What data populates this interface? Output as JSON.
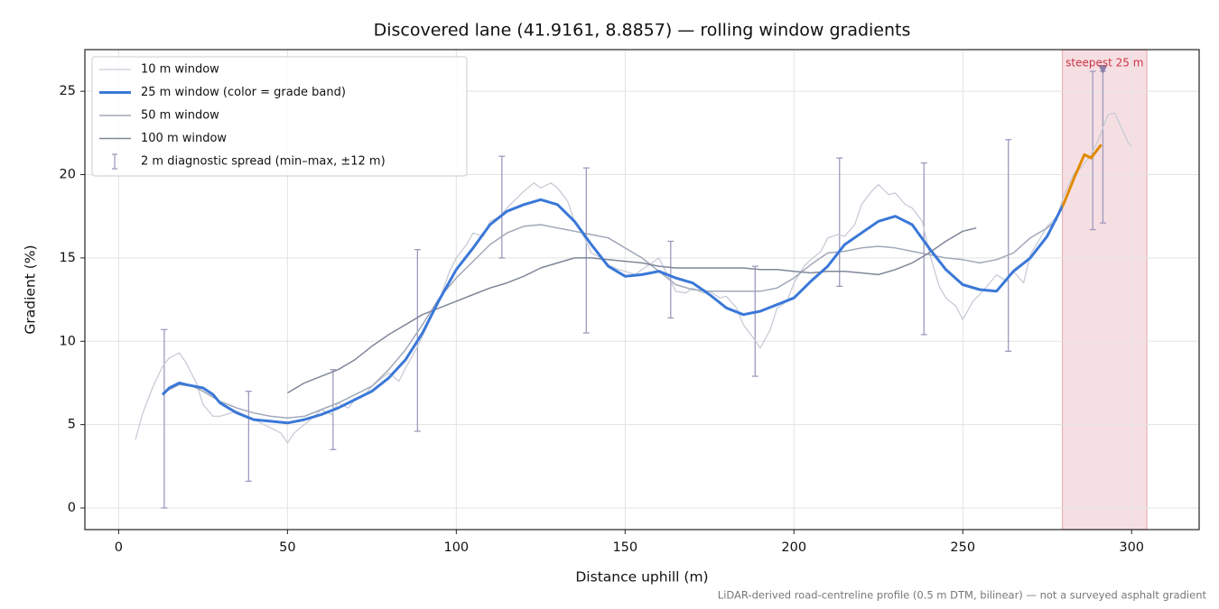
{
  "chart_data": {
    "type": "line",
    "title": "Discovered lane (41.9161, 8.8857) — rolling window gradients",
    "xlabel": "Distance uphill (m)",
    "ylabel": "Gradient (%)",
    "note": "LiDAR-derived road-centreline profile (0.5 m DTM, bilinear) — not a surveyed asphalt gradient",
    "xlim": [
      -10,
      320
    ],
    "ylim": [
      -1.3,
      27.5
    ],
    "xticks": [
      0,
      50,
      100,
      150,
      200,
      250,
      300
    ],
    "yticks": [
      0,
      5,
      10,
      15,
      20,
      25
    ],
    "grid": true,
    "legend": "upper left",
    "series": [
      {
        "name": "10 m window",
        "color": "#c8ccd6",
        "width": 1.3,
        "x": [
          5,
          7,
          10,
          13,
          15,
          18,
          20,
          23,
          25,
          28,
          30,
          35,
          40,
          45,
          48,
          50,
          52,
          55,
          58,
          60,
          63,
          65,
          68,
          70,
          73,
          75,
          78,
          80,
          83,
          85,
          88,
          90,
          95,
          98,
          100,
          103,
          105,
          108,
          110,
          113,
          115,
          118,
          120,
          123,
          125,
          128,
          130,
          133,
          135,
          138,
          140,
          143,
          145,
          148,
          150,
          153,
          155,
          158,
          160,
          163,
          165,
          168,
          170,
          173,
          175,
          178,
          180,
          183,
          185,
          188,
          190,
          193,
          195,
          198,
          200,
          203,
          205,
          208,
          210,
          213,
          215,
          218,
          220,
          223,
          225,
          228,
          230,
          233,
          235,
          238,
          240,
          243,
          245,
          248,
          250,
          253,
          255,
          258,
          260,
          263,
          265,
          268,
          270,
          273,
          275,
          278,
          280,
          283,
          285,
          288,
          290,
          293,
          295,
          297,
          299,
          300
        ],
        "values": [
          4.1,
          5.6,
          7.2,
          8.5,
          9.0,
          9.3,
          8.7,
          7.5,
          6.2,
          5.5,
          5.5,
          5.8,
          5.3,
          4.8,
          4.5,
          3.9,
          4.5,
          5.0,
          5.5,
          5.9,
          5.6,
          6.3,
          6.0,
          6.5,
          6.8,
          7.3,
          7.8,
          8.1,
          7.6,
          8.4,
          9.5,
          10.3,
          12.5,
          14.2,
          15.0,
          15.8,
          16.5,
          16.3,
          17.2,
          17.5,
          18.0,
          18.6,
          19.0,
          19.5,
          19.2,
          19.5,
          19.2,
          18.4,
          17.2,
          16.2,
          15.3,
          15.0,
          14.6,
          14.3,
          14.2,
          14.0,
          14.3,
          14.7,
          15.0,
          13.8,
          13.0,
          12.9,
          13.2,
          12.9,
          13.0,
          12.6,
          12.7,
          12.0,
          11.0,
          10.2,
          9.6,
          10.7,
          12.0,
          12.4,
          13.5,
          14.5,
          14.9,
          15.4,
          16.2,
          16.4,
          16.3,
          17.0,
          18.2,
          19.0,
          19.4,
          18.8,
          18.9,
          18.2,
          18.0,
          17.2,
          15.4,
          13.3,
          12.6,
          12.1,
          11.3,
          12.4,
          12.8,
          13.5,
          14.0,
          13.6,
          14.2,
          13.5,
          15.2,
          16.2,
          16.9,
          17.5,
          18.8,
          20.1,
          20.4,
          21.2,
          22.0,
          23.6,
          23.7,
          22.8,
          21.9,
          21.7
        ]
      },
      {
        "name": "25 m window (color = grade band)",
        "color": "#3a78d8",
        "highlight_color": "#e08a00",
        "width": 3,
        "x": [
          13,
          15,
          18,
          20,
          25,
          28,
          30,
          35,
          40,
          45,
          50,
          55,
          60,
          65,
          70,
          75,
          80,
          85,
          90,
          95,
          100,
          105,
          110,
          115,
          120,
          125,
          130,
          135,
          140,
          145,
          150,
          155,
          160,
          165,
          170,
          175,
          180,
          185,
          190,
          195,
          200,
          205,
          210,
          215,
          220,
          225,
          230,
          235,
          240,
          245,
          250,
          255,
          260,
          265,
          270,
          275,
          280,
          283,
          286,
          288,
          291
        ],
        "values": [
          6.8,
          7.2,
          7.5,
          7.4,
          7.2,
          6.8,
          6.3,
          5.7,
          5.3,
          5.2,
          5.1,
          5.3,
          5.6,
          6.0,
          6.5,
          7.0,
          7.8,
          8.9,
          10.5,
          12.5,
          14.3,
          15.6,
          17.0,
          17.8,
          18.2,
          18.5,
          18.2,
          17.2,
          15.8,
          14.5,
          13.9,
          14.0,
          14.2,
          13.8,
          13.5,
          12.8,
          12.0,
          11.6,
          11.8,
          12.2,
          12.6,
          13.6,
          14.5,
          15.8,
          16.5,
          17.2,
          17.5,
          17.0,
          15.6,
          14.3,
          13.4,
          13.1,
          13.0,
          14.2,
          15.0,
          16.3,
          18.3,
          19.8,
          21.2,
          21.0,
          21.8
        ]
      },
      {
        "name": "50 m window",
        "color": "#a0a8b8",
        "width": 1.5,
        "x": [
          13,
          18,
          22,
          25,
          30,
          35,
          40,
          45,
          50,
          55,
          60,
          65,
          70,
          75,
          80,
          85,
          90,
          95,
          100,
          105,
          110,
          115,
          120,
          125,
          130,
          135,
          140,
          145,
          150,
          155,
          160,
          165,
          170,
          175,
          180,
          185,
          190,
          195,
          200,
          205,
          210,
          215,
          220,
          225,
          230,
          235,
          240,
          245,
          250,
          255,
          260,
          265,
          270,
          275,
          278
        ],
        "values": [
          6.9,
          7.4,
          7.3,
          7.0,
          6.4,
          6.0,
          5.7,
          5.5,
          5.4,
          5.5,
          5.9,
          6.3,
          6.8,
          7.3,
          8.3,
          9.5,
          11.0,
          12.6,
          13.8,
          14.8,
          15.8,
          16.5,
          16.9,
          17.0,
          16.8,
          16.6,
          16.4,
          16.2,
          15.6,
          15.0,
          14.2,
          13.4,
          13.1,
          13.0,
          13.0,
          13.0,
          13.0,
          13.2,
          13.8,
          14.6,
          15.3,
          15.4,
          15.6,
          15.7,
          15.6,
          15.4,
          15.2,
          15.0,
          14.9,
          14.7,
          14.9,
          15.3,
          16.2,
          16.8,
          17.3
        ]
      },
      {
        "name": "100 m window",
        "color": "#7f8799",
        "width": 1.5,
        "x": [
          50,
          55,
          60,
          65,
          70,
          75,
          80,
          85,
          90,
          95,
          100,
          105,
          110,
          115,
          120,
          125,
          130,
          135,
          140,
          145,
          150,
          155,
          160,
          165,
          170,
          175,
          180,
          185,
          190,
          195,
          200,
          205,
          210,
          215,
          220,
          225,
          230,
          235,
          240,
          245,
          250,
          254
        ],
        "values": [
          6.9,
          7.5,
          7.9,
          8.3,
          8.9,
          9.7,
          10.4,
          11.0,
          11.6,
          12.0,
          12.4,
          12.8,
          13.2,
          13.5,
          13.9,
          14.4,
          14.7,
          15.0,
          15.0,
          14.9,
          14.8,
          14.7,
          14.5,
          14.4,
          14.4,
          14.4,
          14.4,
          14.4,
          14.3,
          14.3,
          14.2,
          14.1,
          14.2,
          14.2,
          14.1,
          14.0,
          14.3,
          14.7,
          15.3,
          16.0,
          16.6,
          16.8
        ]
      }
    ],
    "errorbars": {
      "name": "2 m diagnostic spread (min–max, ±12 m)",
      "color": "#9d9abd",
      "x": [
        13.5,
        38.5,
        63.5,
        88.5,
        113.5,
        138.5,
        163.5,
        188.5,
        213.5,
        238.5,
        263.5,
        288.5,
        291.5
      ],
      "low": [
        0,
        1.6,
        3.5,
        4.6,
        15.0,
        10.5,
        11.4,
        7.9,
        13.3,
        10.4,
        9.4,
        16.7,
        17.1
      ],
      "high": [
        10.7,
        7.0,
        8.3,
        15.5,
        21.1,
        20.4,
        16.0,
        14.5,
        21.0,
        20.7,
        22.1,
        26.2,
        26.2
      ]
    },
    "highlight": {
      "x": [
        279.5,
        304.5
      ],
      "color": "#e8b0b8",
      "label": "steepest 25 m",
      "marker": {
        "x": 291.5,
        "y": 26.3,
        "color": "#8a7fa8"
      }
    }
  }
}
